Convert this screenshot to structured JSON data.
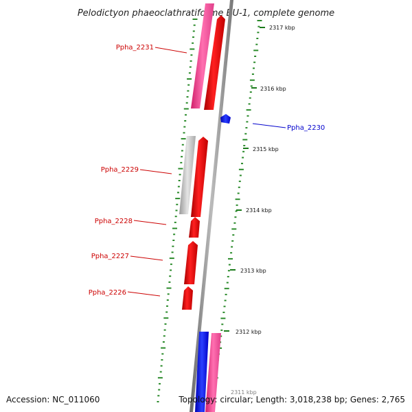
{
  "title": "Pelodictyon phaeoclathratiforme BU-1, complete genome",
  "footer": {
    "accession": "Accession: NC_011060",
    "topology": "Topology: circular; Length: 3,018,238 bp; Genes: 2,765"
  },
  "colors": {
    "backbone": "#888888",
    "ticks": "#2a8a2a",
    "label_red": "#cc0000",
    "label_blue": "#0000cc"
  },
  "scale": [
    {
      "label": "2317 kbp"
    },
    {
      "label": "2316 kbp"
    },
    {
      "label": "2315 kbp"
    },
    {
      "label": "2314 kbp"
    },
    {
      "label": "2313 kbp"
    },
    {
      "label": "2312 kbp"
    },
    {
      "label": "2311 kbp"
    }
  ],
  "genes": [
    {
      "label": "Ppha_2231",
      "color": "red"
    },
    {
      "label": "Ppha_2230",
      "color": "blue"
    },
    {
      "label": "Ppha_2229",
      "color": "red"
    },
    {
      "label": "Ppha_2228",
      "color": "red"
    },
    {
      "label": "Ppha_2227",
      "color": "red"
    },
    {
      "label": "Ppha_2226",
      "color": "red"
    }
  ]
}
